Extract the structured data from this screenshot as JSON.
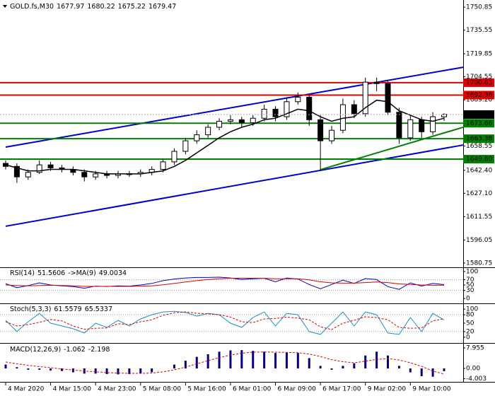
{
  "chart_data": [
    {
      "type": "candlestick",
      "title": "GOLD.fs,M30",
      "categories": [
        "4 Mar 2020",
        null,
        null,
        null,
        "4 Mar 15:00",
        null,
        null,
        null,
        "4 Mar 23:00",
        null,
        null,
        null,
        "5 Mar 08:00",
        null,
        null,
        null,
        "5 Mar 16:00",
        null,
        null,
        null,
        "6 Mar 01:00",
        null,
        null,
        null,
        "6 Mar 09:00",
        null,
        null,
        null,
        "6 Mar 17:00",
        null,
        null,
        null,
        "9 Mar 02:00",
        null,
        null,
        null,
        "9 Mar 10:00",
        null,
        null,
        null
      ],
      "open": [
        1647,
        1645,
        1638,
        1641,
        1646,
        1644,
        1643,
        1641,
        1638,
        1640,
        1639,
        1640,
        1640,
        1641,
        1643,
        1648,
        1655,
        1662,
        1666,
        1671,
        1675,
        1676,
        1674,
        1677,
        1683,
        1678,
        1688,
        1691,
        1676,
        1662,
        1669,
        1686,
        1680,
        1701,
        1700,
        1681,
        1664,
        1676,
        1668,
        1677.97
      ],
      "high": [
        1649,
        1647,
        1643,
        1649,
        1648,
        1646,
        1645,
        1643,
        1642,
        1642,
        1642,
        1642,
        1643,
        1645,
        1650,
        1657,
        1664,
        1669,
        1673,
        1677,
        1679,
        1678,
        1679,
        1686,
        1685,
        1691,
        1694,
        1692,
        1679,
        1672,
        1690,
        1689,
        1704,
        1704,
        1702,
        1684,
        1679,
        1678,
        1681,
        1680.22
      ],
      "low": [
        1643,
        1634,
        1636,
        1640,
        1642,
        1641,
        1639,
        1635,
        1636,
        1637,
        1637,
        1638,
        1638,
        1639,
        1641,
        1646,
        1653,
        1660,
        1664,
        1669,
        1673,
        1671,
        1672,
        1675,
        1675,
        1676,
        1686,
        1672,
        1642,
        1660,
        1667,
        1677,
        1678,
        1695,
        1679,
        1660,
        1662,
        1664,
        1666,
        1675.22
      ],
      "close": [
        1645,
        1638,
        1641,
        1646,
        1644,
        1643,
        1641,
        1638,
        1640,
        1639,
        1640,
        1640,
        1641,
        1643,
        1648,
        1655,
        1662,
        1666,
        1671,
        1675,
        1676,
        1674,
        1677,
        1683,
        1678,
        1688,
        1691,
        1676,
        1662,
        1669,
        1686,
        1680,
        1701,
        1700,
        1681,
        1664,
        1676,
        1668,
        1678,
        1679.47
      ],
      "ma": [
        1646,
        1644,
        1642,
        1642,
        1643,
        1643,
        1643,
        1642,
        1641,
        1640,
        1640,
        1640,
        1640,
        1641,
        1642,
        1645,
        1649,
        1654,
        1659,
        1664,
        1668,
        1671,
        1673,
        1676,
        1677,
        1680,
        1683,
        1682,
        1678,
        1675,
        1677,
        1678,
        1684,
        1689,
        1688,
        1682,
        1679,
        1676,
        1675,
        1677
      ],
      "ma_color": "#000000",
      "ylim": [
        1577.9,
        1755.6
      ],
      "yticks": [
        1750.85,
        1735.55,
        1719.85,
        1704.55,
        {
          "value": 1689.2,
          "label": "1689.20"
        },
        1658.55,
        {
          "value": 1642.4,
          "label": "1642.40"
        },
        {
          "value": 1627.1,
          "label": "1627.10"
        },
        1611.55,
        1596.05,
        1580.75
      ],
      "levels": [
        {
          "value": 1700.63,
          "color": "#e00000"
        },
        {
          "value": 1692.38,
          "color": "#e00000"
        },
        {
          "value": 1673.66,
          "color": "#008000"
        },
        {
          "value": 1663.38,
          "color": "#008000"
        },
        {
          "value": {
            "value": 1649.8,
            "label": "1649.80"
          },
          "color": "#008000"
        }
      ],
      "trendlines": [
        {
          "start": 0,
          "values": [
            1657.8,
            1710.9
          ],
          "color": "#0000cd"
        },
        {
          "start": 0,
          "values": [
            1605.2,
            1659.2
          ],
          "color": "#0000cd"
        },
        {
          "start": 28,
          "values": [
            1642.8,
            1671.0
          ],
          "color": "#008000"
        }
      ]
    },
    {
      "type": "line",
      "title": "RSI(14)",
      "series": [
        {
          "name": "RSI(14)",
          "color": "#0000cd",
          "values": [
            55,
            40,
            48,
            58,
            50,
            47,
            44,
            38,
            46,
            44,
            47,
            46,
            50,
            56,
            66,
            72,
            76,
            78,
            78,
            79,
            76,
            70,
            73,
            75,
            62,
            76,
            72,
            52,
            36,
            52,
            68,
            56,
            74,
            70,
            44,
            34,
            58,
            46,
            56,
            51.5606
          ]
        },
        {
          "name": "->MA(9)",
          "color": "#e00000",
          "values": [
            50,
            48,
            47,
            48,
            49,
            48,
            47,
            45,
            45,
            45,
            45,
            45,
            46,
            47,
            51,
            56,
            61,
            66,
            70,
            73,
            75,
            75,
            75,
            75,
            73,
            73,
            73,
            69,
            62,
            58,
            57,
            57,
            59,
            61,
            59,
            54,
            52,
            50,
            49,
            49.0034
          ]
        }
      ],
      "ylim": [
        -18,
        113
      ],
      "yticks": [
        100,
        70,
        50,
        30,
        0
      ],
      "levels": [
        30,
        70
      ]
    },
    {
      "type": "line",
      "title": "Stoch(5,3,3)",
      "series": [
        {
          "color": "#1e90c8",
          "values": [
            60,
            20,
            55,
            85,
            50,
            40,
            30,
            15,
            50,
            35,
            60,
            40,
            65,
            80,
            90,
            92,
            88,
            75,
            85,
            80,
            50,
            35,
            70,
            90,
            40,
            85,
            80,
            20,
            10,
            50,
            90,
            40,
            90,
            80,
            15,
            10,
            70,
            20,
            85,
            61.5579
          ]
        },
        {
          "color": "#e00000",
          "dashed": true,
          "values": [
            55,
            40,
            45,
            53,
            63,
            58,
            40,
            28,
            32,
            33,
            48,
            45,
            55,
            62,
            78,
            87,
            90,
            85,
            83,
            80,
            72,
            55,
            52,
            65,
            67,
            72,
            68,
            62,
            37,
            27,
            50,
            60,
            73,
            70,
            62,
            35,
            32,
            33,
            58,
            65.5337
          ]
        }
      ],
      "ylim": [
        -20.5,
        118
      ],
      "yticks": [
        100,
        80,
        50,
        20,
        0
      ],
      "levels": [
        20,
        80
      ]
    },
    {
      "type": "macd",
      "title": "MACD(12,26,9)",
      "series": [
        {
          "color": "#000080",
          "values": [
            1.5,
            0.5,
            -0.5,
            -0.5,
            -0.8,
            -1,
            -1.5,
            -2,
            -2,
            -2.2,
            -2.3,
            -2.2,
            -2,
            -1.5,
            0,
            1.5,
            3,
            4.5,
            5.5,
            6.5,
            7,
            7.1,
            6.8,
            6.5,
            6,
            6.2,
            6,
            4,
            1,
            -0.5,
            1,
            2,
            5,
            6.5,
            5,
            1,
            -1.5,
            -3,
            -3.2,
            -1.062
          ]
        },
        {
          "color": "#e00000",
          "dashed": true,
          "values": [
            2.5,
            1.8,
            1.2,
            0.7,
            0.3,
            -0.2,
            -0.6,
            -1,
            -1.3,
            -1.6,
            -1.8,
            -1.9,
            -1.9,
            -1.8,
            -1.3,
            -0.5,
            0.5,
            1.8,
            3,
            4.2,
            5.2,
            5.9,
            6.3,
            6.4,
            6.3,
            6.2,
            6.1,
            5.6,
            4.6,
            3.4,
            2.6,
            2.2,
            2.8,
            3.5,
            3.8,
            3.3,
            2.2,
            0.8,
            -1,
            -2.198
          ]
        }
      ],
      "ylim": [
        -5.2,
        9.6
      ],
      "yticks": [
        7.955,
        {
          "value": 0,
          "label": "0.00"
        },
        -4.003
      ]
    }
  ]
}
